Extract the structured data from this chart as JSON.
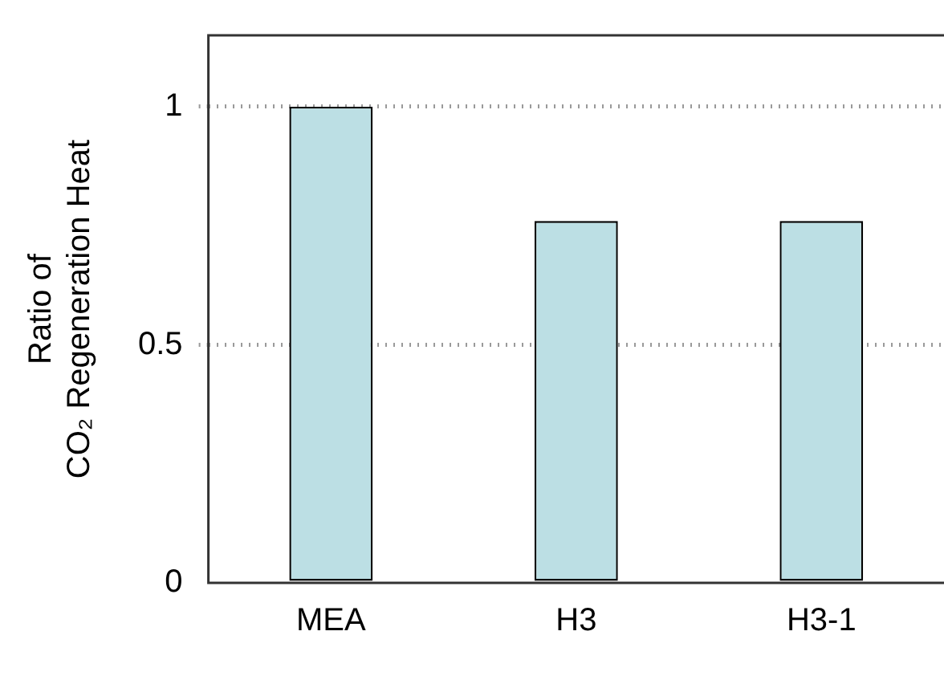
{
  "chart_data": {
    "type": "bar",
    "ylabel": "Ratio of\nCO₂ Regeneration Heat",
    "categories": [
      "MEA",
      "H3",
      "H3-1"
    ],
    "values": [
      1,
      0.76,
      0.76
    ],
    "color": "#bcdfe4",
    "ylim": [
      0,
      1.15
    ],
    "yticks": [
      0,
      0.5,
      1
    ],
    "grid": "y"
  }
}
